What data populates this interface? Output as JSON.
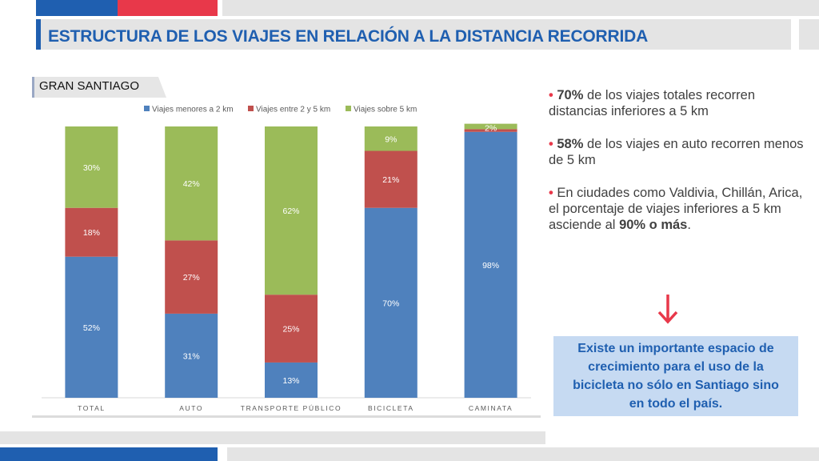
{
  "header": {
    "title": "ESTRUCTURA DE LOS VIAJES EN RELACIÓN A LA DISTANCIA RECORRIDA"
  },
  "panel": {
    "label": "GRAN SANTIAGO"
  },
  "chart_data": {
    "type": "bar",
    "stacked": true,
    "categories": [
      "TOTAL",
      "AUTO",
      "TRANSPORTE PÚBLICO",
      "BICICLETA",
      "CAMINATA"
    ],
    "series": [
      {
        "name": "Viajes menores a 2 km",
        "color": "#4f81bd",
        "values": [
          52,
          31,
          13,
          70,
          98
        ],
        "labels": [
          "52%",
          "31%",
          "13%",
          "70%",
          "98%"
        ]
      },
      {
        "name": "Viajes entre 2 y 5 km",
        "color": "#c0504d",
        "values": [
          18,
          27,
          25,
          21,
          1
        ],
        "labels": [
          "18%",
          "27%",
          "25%",
          "21%",
          ""
        ]
      },
      {
        "name": "Viajes sobre 5 km",
        "color": "#9bbb59",
        "values": [
          30,
          42,
          62,
          9,
          2
        ],
        "labels": [
          "30%",
          "42%",
          "62%",
          "9%",
          "2%"
        ]
      }
    ],
    "ylim": [
      0,
      100
    ],
    "legend": "top",
    "grid": false
  },
  "bullets": [
    {
      "bold": "70%",
      "text": " de los viajes totales recorren distancias inferiores a 5 km"
    },
    {
      "bold": "58%",
      "text": " de los viajes en auto recorren menos de 5 km"
    },
    {
      "pre": "En ciudades como Valdivia, Chillán, Arica, el porcentaje de viajes inferiores a 5 km asciende al ",
      "bold": "90% o más",
      "post": "."
    }
  ],
  "callout": {
    "text": "Existe un importante espacio de crecimiento para el uso de la bicicleta no sólo en Santiago sino en todo el país."
  },
  "icons": {
    "arrow": "arrow-down-icon",
    "arrow_color": "#e8384a"
  }
}
